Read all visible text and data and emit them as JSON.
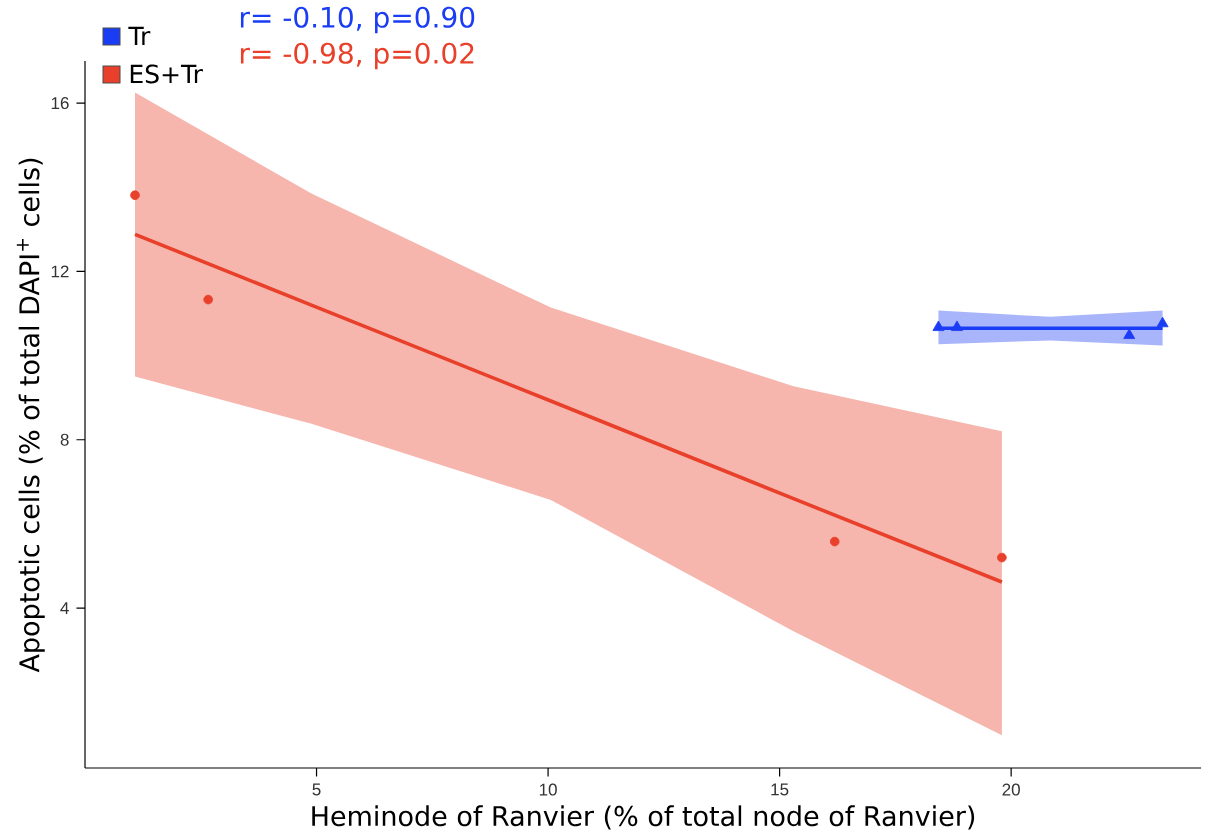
{
  "chart_data": {
    "type": "scatter",
    "xlabel": "Heminode of Ranvier (% of total node of Ranvier)",
    "ylabel": "Apoptotic cells (% of total DAPI$^{+}$ cells)",
    "annotations": [
      "r= -0.10, p=0.90",
      "r= -0.98, p=0.02"
    ],
    "xlim": [
      0,
      24.1
    ],
    "ylim": [
      0.2,
      17
    ],
    "xticks": [
      5,
      10,
      15,
      20
    ],
    "yticks": [
      4,
      8,
      12,
      16
    ],
    "grid": false,
    "legend": "top left",
    "series": [
      {
        "name": "Tr",
        "color": "#1a3cf5",
        "marker": "triangle",
        "x": [
          18.43,
          18.83,
          22.55,
          23.27
        ],
        "values": [
          10.67,
          10.67,
          10.48,
          10.76
        ]
      },
      {
        "type": "line",
        "color": "#1a3cf5",
        "x": [
          18.43,
          20.85,
          23.27
        ],
        "values": [
          10.65,
          10.65,
          10.65
        ],
        "lower": [
          10.27,
          10.36,
          10.24
        ],
        "upper": [
          11.07,
          10.92,
          11.07
        ]
      },
      {
        "name": "ES+Tr",
        "color": "#e8402a",
        "marker": "circle",
        "x": [
          1.08,
          2.66,
          16.19,
          19.8
        ],
        "values": [
          13.81,
          11.33,
          5.58,
          5.2
        ]
      },
      {
        "type": "line",
        "color": "#e8402a",
        "x": [
          1.08,
          4.89,
          10.06,
          15.3,
          19.8
        ],
        "values": [
          12.88,
          11.2,
          8.92,
          6.6,
          4.62
        ],
        "lower": [
          9.5,
          8.38,
          6.57,
          3.45,
          0.98
        ],
        "upper": [
          16.25,
          13.85,
          11.14,
          9.27,
          8.2
        ]
      }
    ]
  }
}
